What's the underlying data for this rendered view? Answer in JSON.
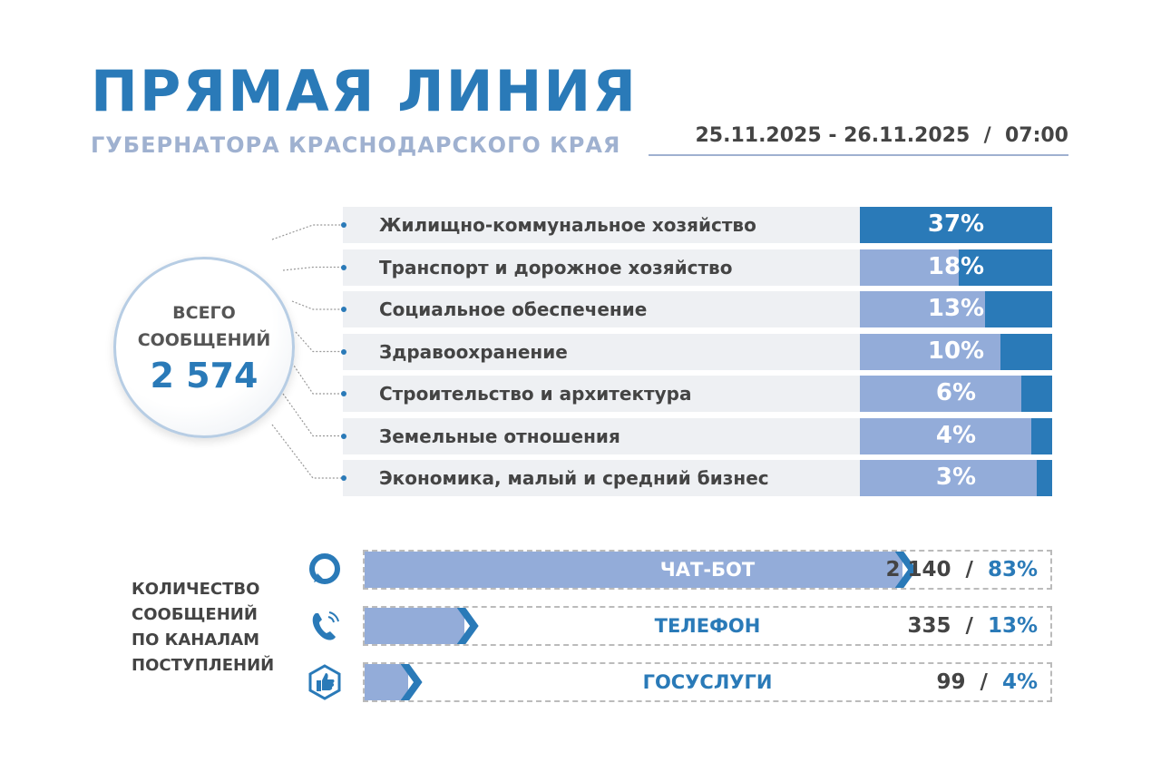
{
  "header": {
    "title": "ПРЯМАЯ ЛИНИЯ",
    "subtitle": "ГУБЕРНАТОРА КРАСНОДАРСКОГО КРАЯ",
    "date": "25.11.2025 - 26.11.2025  /  07:00"
  },
  "total": {
    "line1": "ВСЕГО",
    "line2": "СООБЩЕНИЙ",
    "value": "2 574"
  },
  "colors": {
    "accent": "#2a7ab8",
    "light": "#93acd9",
    "row_bg": "#eef0f3"
  },
  "chart_data": [
    {
      "type": "bar",
      "categories": [
        "Жилищно-коммунальное хозяйство",
        "Транспорт и дорожное хозяйство",
        "Социальное обеспечение",
        "Здравоохранение",
        "Строительство и архитектура",
        "Земельные отношения",
        "Экономика, малый и средний бизнес"
      ],
      "values": [
        37,
        18,
        13,
        10,
        6,
        4,
        3
      ],
      "labels": [
        "37%",
        "18%",
        "13%",
        "10%",
        "6%",
        "4%",
        "3%"
      ]
    },
    {
      "type": "bar",
      "title_lines": [
        "КОЛИЧЕСТВО",
        "СООБЩЕНИЙ",
        "ПО КАНАЛАМ",
        "ПОСТУПЛЕНИЙ"
      ],
      "categories": [
        "ЧАТ-БОТ",
        "ТЕЛЕФОН",
        "ГОСУСЛУГИ"
      ],
      "values": [
        2140,
        335,
        99
      ],
      "percent": [
        83,
        13,
        4
      ],
      "value_labels": [
        "2 140",
        "335",
        "99"
      ],
      "percent_labels": [
        "83%",
        "13%",
        "4%"
      ],
      "icons": [
        "chat-bubble-icon",
        "phone-icon",
        "thumbs-up-icon"
      ]
    }
  ]
}
